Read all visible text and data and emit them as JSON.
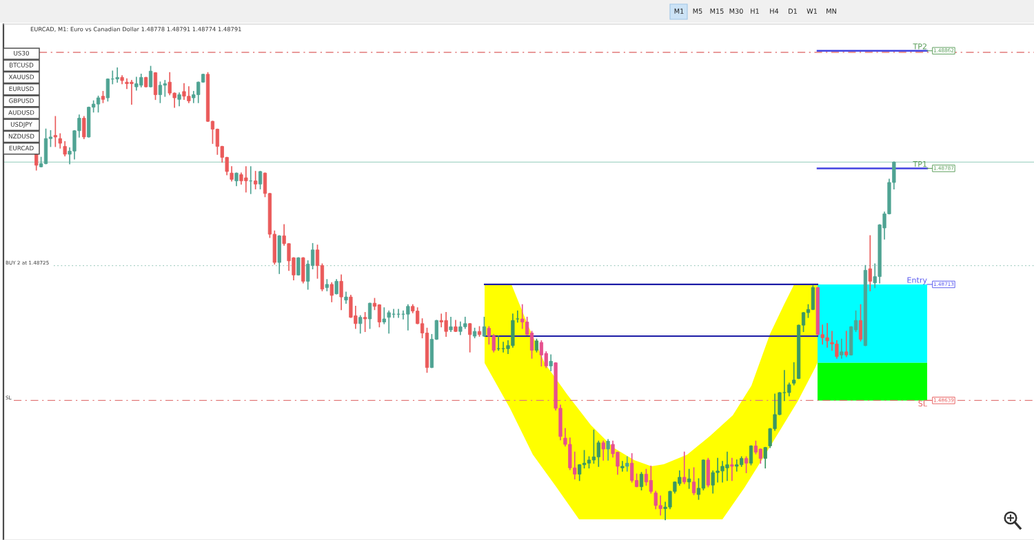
{
  "chart_data": {
    "type": "candlestick",
    "title": "EURCAD, M1: Euro vs Canadian Dollar 1.48778 1.48791 1.48774 1.48791",
    "categories": [
      null,
      null,
      null,
      null,
      null,
      null,
      null,
      null,
      null,
      null,
      null,
      null,
      null,
      null,
      null,
      null,
      null,
      null,
      null,
      null,
      null,
      null,
      null,
      null,
      null,
      null,
      null,
      null,
      null,
      null,
      null,
      null,
      null,
      null,
      null,
      null,
      null,
      null,
      null,
      null,
      null,
      null,
      null,
      null,
      null,
      null,
      null,
      null,
      null,
      null,
      null,
      null,
      null,
      null,
      null,
      null,
      null,
      null,
      null,
      null,
      null,
      null,
      null,
      null,
      null,
      null,
      null,
      null,
      null,
      null,
      null,
      null,
      null,
      null,
      null,
      null,
      null,
      null,
      null,
      null,
      null,
      null,
      null,
      null,
      null,
      null,
      null,
      null,
      null,
      null,
      null,
      null,
      null,
      null,
      null,
      null,
      null,
      null,
      null,
      null,
      null,
      null,
      null,
      null,
      null,
      null,
      null,
      null,
      null,
      null,
      null,
      null,
      null,
      null,
      null,
      null,
      null,
      null,
      null,
      null,
      null,
      null,
      null,
      null,
      null,
      null,
      null,
      null,
      null,
      null,
      null,
      null,
      null,
      null,
      null,
      null,
      null,
      null,
      null,
      null,
      null,
      null,
      null,
      null,
      null,
      null,
      null,
      null,
      null,
      null,
      null,
      null,
      null,
      null,
      null,
      null,
      null,
      null,
      null,
      null,
      null,
      null,
      null,
      null,
      null,
      null,
      null,
      null,
      null,
      null,
      null,
      null,
      null,
      null,
      null,
      null,
      null,
      null,
      null,
      null,
      null
    ],
    "ohlc": [
      [
        1.48796,
        1.48796,
        1.48786,
        1.48789
      ],
      [
        1.48788,
        1.48794,
        1.48788,
        1.4879
      ],
      [
        1.4879,
        1.48812,
        1.4879,
        1.48806
      ],
      [
        1.48806,
        1.48811,
        1.48801,
        1.48807
      ],
      [
        1.48808,
        1.4882,
        1.48801,
        1.48807
      ],
      [
        1.48806,
        1.48809,
        1.488,
        1.48803
      ],
      [
        1.48801,
        1.48804,
        1.48795,
        1.48796
      ],
      [
        1.48796,
        1.488,
        1.4879,
        1.48798
      ],
      [
        1.48798,
        1.48811,
        1.48793,
        1.48811
      ],
      [
        1.48811,
        1.48821,
        1.48807,
        1.48819
      ],
      [
        1.48819,
        1.4882,
        1.48806,
        1.48807
      ],
      [
        1.48807,
        1.48826,
        1.48807,
        1.48826
      ],
      [
        1.48826,
        1.4883,
        1.48823,
        1.48828
      ],
      [
        1.48828,
        1.48833,
        1.48823,
        1.48832
      ],
      [
        1.48833,
        1.48836,
        1.48829,
        1.48831
      ],
      [
        1.48832,
        1.48844,
        1.4883,
        1.48844
      ],
      [
        1.48844,
        1.48849,
        1.48841,
        1.48844
      ],
      [
        1.48844,
        1.48851,
        1.48842,
        1.48845
      ],
      [
        1.48845,
        1.48846,
        1.48841,
        1.48843
      ],
      [
        1.48842,
        1.48844,
        1.48838,
        1.48841
      ],
      [
        1.48842,
        1.48843,
        1.48828,
        1.48841
      ],
      [
        1.48839,
        1.48845,
        1.48837,
        1.48841
      ],
      [
        1.4884,
        1.48847,
        1.48839,
        1.48845
      ],
      [
        1.48845,
        1.48845,
        1.48839,
        1.48839
      ],
      [
        1.48839,
        1.48852,
        1.48839,
        1.48849
      ],
      [
        1.48848,
        1.48848,
        1.48831,
        1.48834
      ],
      [
        1.48834,
        1.48842,
        1.48829,
        1.4884
      ],
      [
        1.4884,
        1.48843,
        1.48833,
        1.48841
      ],
      [
        1.48842,
        1.48848,
        1.48834,
        1.48835
      ],
      [
        1.48835,
        1.48835,
        1.48826,
        1.48832
      ],
      [
        1.48831,
        1.48835,
        1.48827,
        1.48834
      ],
      [
        1.48836,
        1.48841,
        1.48831,
        1.48833
      ],
      [
        1.48833,
        1.48839,
        1.48829,
        1.4883
      ],
      [
        1.48832,
        1.48836,
        1.48829,
        1.48834
      ],
      [
        1.48834,
        1.48842,
        1.48829,
        1.48842
      ],
      [
        1.48842,
        1.48847,
        1.48842,
        1.48847
      ],
      [
        1.48847,
        1.48848,
        1.48817,
        1.48817
      ],
      [
        1.48817,
        1.48817,
        1.48803,
        1.48812
      ],
      [
        1.48812,
        1.48812,
        1.48796,
        1.48801
      ],
      [
        1.48801,
        1.48801,
        1.48791,
        1.48794
      ],
      [
        1.48794,
        1.48794,
        1.48783,
        1.48785
      ],
      [
        1.48784,
        1.48788,
        1.48779,
        1.4878
      ],
      [
        1.48779,
        1.48784,
        1.48776,
        1.48784
      ],
      [
        1.48783,
        1.48784,
        1.48777,
        1.48779
      ],
      [
        1.48781,
        1.48788,
        1.48772,
        1.48779
      ],
      [
        1.48779,
        1.48788,
        1.48771,
        1.48779
      ],
      [
        1.48779,
        1.48785,
        1.48774,
        1.48777
      ],
      [
        1.48777,
        1.48785,
        1.48774,
        1.48785
      ],
      [
        1.48784,
        1.48784,
        1.48769,
        1.48771
      ],
      [
        1.48771,
        1.48771,
        1.48743,
        1.48745
      ],
      [
        1.48745,
        1.48747,
        1.48726,
        1.48727
      ],
      [
        1.48727,
        1.48744,
        1.4872,
        1.48744
      ],
      [
        1.48744,
        1.48751,
        1.48738,
        1.48739
      ],
      [
        1.48739,
        1.48739,
        1.48722,
        1.48728
      ],
      [
        1.4873,
        1.4873,
        1.48716,
        1.48719
      ],
      [
        1.48719,
        1.4873,
        1.48719,
        1.4873
      ],
      [
        1.4873,
        1.4873,
        1.48714,
        1.48715
      ],
      [
        1.48715,
        1.48728,
        1.4871,
        1.48726
      ],
      [
        1.48725,
        1.48739,
        1.48723,
        1.48735
      ],
      [
        1.48735,
        1.48738,
        1.48717,
        1.48725
      ],
      [
        1.48725,
        1.48726,
        1.48709,
        1.4871
      ],
      [
        1.48711,
        1.48716,
        1.48709,
        1.48713
      ],
      [
        1.48713,
        1.48714,
        1.48702,
        1.48706
      ],
      [
        1.48707,
        1.48716,
        1.48707,
        1.48715
      ],
      [
        1.48715,
        1.48719,
        1.48697,
        1.48705
      ],
      [
        1.48703,
        1.48708,
        1.48701,
        1.48705
      ],
      [
        1.48705,
        1.48706,
        1.48692,
        1.48692
      ],
      [
        1.48693,
        1.48699,
        1.48685,
        1.48688
      ],
      [
        1.48688,
        1.48693,
        1.48682,
        1.48692
      ],
      [
        1.48692,
        1.48695,
        1.48683,
        1.48691
      ],
      [
        1.48691,
        1.48701,
        1.48685,
        1.48701
      ],
      [
        1.48701,
        1.48704,
        1.48697,
        1.48699
      ],
      [
        1.487,
        1.487,
        1.48686,
        1.48689
      ],
      [
        1.48689,
        1.48698,
        1.48688,
        1.48691
      ],
      [
        1.48692,
        1.48696,
        1.48682,
        1.48695
      ],
      [
        1.48694,
        1.48697,
        1.48692,
        1.48694
      ],
      [
        1.48694,
        1.48697,
        1.48692,
        1.48694
      ],
      [
        1.48694,
        1.48696,
        1.48691,
        1.48694
      ],
      [
        1.48694,
        1.487,
        1.48684,
        1.48699
      ],
      [
        1.48699,
        1.487,
        1.48695,
        1.48696
      ],
      [
        1.48696,
        1.48698,
        1.48688,
        1.48688
      ],
      [
        1.48688,
        1.48691,
        1.48679,
        1.48682
      ],
      [
        1.48682,
        1.48685,
        1.48657,
        1.4866
      ],
      [
        1.4866,
        1.48681,
        1.4866,
        1.48678
      ],
      [
        1.48678,
        1.4869,
        1.48678,
        1.4869
      ],
      [
        1.4869,
        1.48694,
        1.48686,
        1.48689
      ],
      [
        1.4869,
        1.48695,
        1.4868,
        1.48683
      ],
      [
        1.48684,
        1.48692,
        1.48683,
        1.48686
      ],
      [
        1.48686,
        1.4869,
        1.48683,
        1.48683
      ],
      [
        1.48683,
        1.48689,
        1.48681,
        1.48686
      ],
      [
        1.48686,
        1.48692,
        1.48685,
        1.48688
      ],
      [
        1.48688,
        1.48688,
        1.4867,
        1.48681
      ],
      [
        1.4868,
        1.48685,
        1.48679,
        1.48683
      ],
      [
        1.48683,
        1.48686,
        1.4868,
        1.48681
      ],
      [
        1.4868,
        1.48692,
        1.4868,
        1.48686
      ],
      [
        1.48685,
        1.48686,
        1.48675,
        1.4868
      ],
      [
        1.4868,
        1.48681,
        1.4867,
        1.48671
      ],
      [
        1.48672,
        1.4868,
        1.48671,
        1.48672
      ],
      [
        1.48672,
        1.48676,
        1.4867,
        1.48672
      ],
      [
        1.48672,
        1.48677,
        1.48669,
        1.48674
      ],
      [
        1.48674,
        1.48694,
        1.48673,
        1.4869
      ],
      [
        1.48691,
        1.48696,
        1.48689,
        1.48691
      ],
      [
        1.48691,
        1.487,
        1.48685,
        1.48689
      ],
      [
        1.48689,
        1.48692,
        1.48681,
        1.48681
      ],
      [
        1.48682,
        1.48683,
        1.48666,
        1.48671
      ],
      [
        1.48671,
        1.48678,
        1.4867,
        1.48677
      ],
      [
        1.48676,
        1.48677,
        1.48661,
        1.48668
      ],
      [
        1.48669,
        1.4867,
        1.4866,
        1.48661
      ],
      [
        1.48661,
        1.48668,
        1.48658,
        1.48664
      ],
      [
        1.48663,
        1.48663,
        1.48633,
        1.48634
      ],
      [
        1.48634,
        1.48636,
        1.48614,
        1.48616
      ],
      [
        1.48615,
        1.48621,
        1.4861,
        1.48611
      ],
      [
        1.48611,
        1.48615,
        1.48595,
        1.48596
      ],
      [
        1.48596,
        1.48606,
        1.48589,
        1.48592
      ],
      [
        1.48592,
        1.48598,
        1.48588,
        1.48598
      ],
      [
        1.48598,
        1.48607,
        1.48596,
        1.48599
      ],
      [
        1.48599,
        1.48603,
        1.48596,
        1.48601
      ],
      [
        1.48601,
        1.4862,
        1.48599,
        1.48603
      ],
      [
        1.48603,
        1.48613,
        1.48597,
        1.48612
      ],
      [
        1.48612,
        1.48613,
        1.48601,
        1.48608
      ],
      [
        1.48608,
        1.48614,
        1.48601,
        1.48613
      ],
      [
        1.48611,
        1.48613,
        1.48603,
        1.48605
      ],
      [
        1.48606,
        1.48606,
        1.48592,
        1.48597
      ],
      [
        1.48596,
        1.486,
        1.48594,
        1.48597
      ],
      [
        1.48597,
        1.48603,
        1.48594,
        1.48599
      ],
      [
        1.48599,
        1.48605,
        1.48587,
        1.48588
      ],
      [
        1.48588,
        1.48592,
        1.48584,
        1.48584
      ],
      [
        1.48584,
        1.48593,
        1.48582,
        1.48592
      ],
      [
        1.48592,
        1.48595,
        1.48585,
        1.48587
      ],
      [
        1.48588,
        1.48597,
        1.4858,
        1.48581
      ],
      [
        1.4858,
        1.48581,
        1.4857,
        1.48572
      ],
      [
        1.48572,
        1.48578,
        1.48566,
        1.4857
      ],
      [
        1.4857,
        1.48574,
        1.48563,
        1.48571
      ],
      [
        1.48571,
        1.48581,
        1.4857,
        1.48581
      ],
      [
        1.48581,
        1.48587,
        1.4858,
        1.48587
      ],
      [
        1.48586,
        1.48594,
        1.48585,
        1.4859
      ],
      [
        1.4859,
        1.48606,
        1.48586,
        1.48587
      ],
      [
        1.48587,
        1.48595,
        1.48583,
        1.48589
      ],
      [
        1.48587,
        1.48596,
        1.48579,
        1.4858
      ],
      [
        1.48579,
        1.48589,
        1.48576,
        1.48583
      ],
      [
        1.48583,
        1.48601,
        1.48582,
        1.48601
      ],
      [
        1.48601,
        1.48602,
        1.48584,
        1.48585
      ],
      [
        1.48585,
        1.48594,
        1.4858,
        1.48593
      ],
      [
        1.48593,
        1.48602,
        1.48587,
        1.48594
      ],
      [
        1.48594,
        1.486,
        1.48587,
        1.48597
      ],
      [
        1.48596,
        1.48606,
        1.48588,
        1.48598
      ],
      [
        1.48598,
        1.48602,
        1.48588,
        1.48597
      ],
      [
        1.48597,
        1.48601,
        1.48594,
        1.48598
      ],
      [
        1.48598,
        1.48603,
        1.48597,
        1.48602
      ],
      [
        1.48602,
        1.48603,
        1.48593,
        1.48599
      ],
      [
        1.48599,
        1.4861,
        1.48598,
        1.4861
      ],
      [
        1.4861,
        1.48613,
        1.48605,
        1.48606
      ],
      [
        1.48608,
        1.48608,
        1.48599,
        1.48602
      ],
      [
        1.48602,
        1.48609,
        1.48596,
        1.48609
      ],
      [
        1.4861,
        1.48621,
        1.48609,
        1.48621
      ],
      [
        1.48621,
        1.48643,
        1.4862,
        1.4863
      ],
      [
        1.4863,
        1.48644,
        1.4863,
        1.48644
      ],
      [
        1.48644,
        1.48658,
        1.48639,
        1.48644
      ],
      [
        1.48644,
        1.4865,
        1.48642,
        1.48649
      ],
      [
        1.4865,
        1.48663,
        1.48649,
        1.48652
      ],
      [
        1.48653,
        1.48687,
        1.48653,
        1.48687
      ],
      [
        1.48687,
        1.48695,
        1.48683,
        1.48695
      ],
      [
        1.48695,
        1.487,
        1.48692,
        1.48697
      ],
      [
        1.48697,
        1.48712,
        1.48697,
        1.48711
      ],
      [
        1.48711,
        1.48711,
        1.48681,
        1.48681
      ],
      [
        1.48681,
        1.48687,
        1.48675,
        1.48679
      ],
      [
        1.48679,
        1.48688,
        1.48673,
        1.48677
      ],
      [
        1.48676,
        1.48683,
        1.48671,
        1.48675
      ],
      [
        1.48675,
        1.48677,
        1.48666,
        1.48667
      ],
      [
        1.48668,
        1.48678,
        1.48666,
        1.4867
      ],
      [
        1.4867,
        1.48683,
        1.48667,
        1.48668
      ],
      [
        1.48668,
        1.48686,
        1.48668,
        1.48686
      ],
      [
        1.48684,
        1.48696,
        1.48683,
        1.4869
      ],
      [
        1.4869,
        1.487,
        1.48677,
        1.48678
      ],
      [
        1.48674,
        1.48725,
        1.48674,
        1.48722
      ],
      [
        1.48723,
        1.48744,
        1.48709,
        1.48715
      ],
      [
        1.48714,
        1.48726,
        1.48711,
        1.48718
      ],
      [
        1.48718,
        1.48751,
        1.48714,
        1.48751
      ],
      [
        1.48749,
        1.48759,
        1.48742,
        1.48758
      ],
      [
        1.48758,
        1.4878,
        1.48758,
        1.48778
      ],
      [
        1.48778,
        1.48791,
        1.48774,
        1.48791
      ]
    ],
    "colors": [
      "#ea5a5a",
      "#4fa393",
      "#4fa393",
      "#4fa393",
      "#ea5a5a",
      "#ea5a5a",
      "#ea5a5a",
      "#4fa393",
      "#4fa393",
      "#4fa393",
      "#ea5a5a",
      "#4fa393",
      "#4fa393",
      "#4fa393",
      "#ea5a5a",
      "#4fa393",
      "#4fa393",
      "#4fa393",
      "#ea5a5a",
      "#ea5a5a",
      "#ea5a5a",
      "#4fa393",
      "#4fa393",
      "#ea5a5a",
      "#4fa393",
      "#ea5a5a",
      "#4fa393",
      "#4fa393",
      "#ea5a5a",
      "#ea5a5a",
      "#4fa393",
      "#ea5a5a",
      "#ea5a5a",
      "#4fa393",
      "#4fa393",
      "#4fa393",
      "#ea5a5a",
      "#ea5a5a",
      "#ea5a5a",
      "#ea5a5a",
      "#ea5a5a",
      "#ea5a5a",
      "#4fa393",
      "#ea5a5a",
      "#ea5a5a",
      "#4fa393",
      "#ea5a5a",
      "#4fa393",
      "#ea5a5a",
      "#ea5a5a",
      "#ea5a5a",
      "#4fa393",
      "#ea5a5a",
      "#ea5a5a",
      "#ea5a5a",
      "#4fa393",
      "#ea5a5a",
      "#4fa393",
      "#4fa393",
      "#ea5a5a",
      "#ea5a5a",
      "#4fa393",
      "#ea5a5a",
      "#4fa393",
      "#ea5a5a",
      "#4fa393",
      "#ea5a5a",
      "#ea5a5a",
      "#4fa393",
      "#ea5a5a",
      "#4fa393",
      "#ea5a5a",
      "#ea5a5a",
      "#4fa393",
      "#4fa393",
      "#4fa393",
      "#4fa393",
      "#4fa393",
      "#4fa393",
      "#ea5a5a",
      "#ea5a5a",
      "#ea5a5a",
      "#ea5a5a",
      "#4fa393",
      "#4fa393",
      "#ea5a5a",
      "#ea5a5a",
      "#4fa393",
      "#ea5a5a",
      "#4fa393",
      "#4fa393",
      "#ea5a5a",
      "#4fa393",
      "#ea5a5a",
      "#4fa393",
      "#e6508e",
      "#e6508e",
      "#3b9863",
      "#3b9863",
      "#3b9863",
      "#3b9863",
      "#3b9863",
      "#e6508e",
      "#e6508e",
      "#e6508e",
      "#3b9863",
      "#e6508e",
      "#e6508e",
      "#4fa393",
      "#e6508e",
      "#e6508e",
      "#e6508e",
      "#e6508e",
      "#e6508e",
      "#3b9863",
      "#3b9863",
      "#3b9863",
      "#3b9863",
      "#3b9863",
      "#e6508e",
      "#4fa393",
      "#e6508e",
      "#e6508e",
      "#3b9863",
      "#4fa393",
      "#e6508e",
      "#e6508e",
      "#3b9863",
      "#e6508e",
      "#e6508e",
      "#e6508e",
      "#e6508e",
      "#3b9863",
      "#3b9863",
      "#3b9863",
      "#3b9863",
      "#e6508e",
      "#3b9863",
      "#e6508e",
      "#3b9863",
      "#3b9863",
      "#e6508e",
      "#3b9863",
      "#3b9863",
      "#3b9863",
      "#3b9863",
      "#e6508e",
      "#3b9863",
      "#3b9863",
      "#e6508e",
      "#3b9863",
      "#e6508e",
      "#e6508e",
      "#3b9863",
      "#3b9863",
      "#3b9863",
      "#3b9863",
      "#3b9863",
      "#3b9863",
      "#3b9863",
      "#3b9863",
      "#3b9863",
      "#3b9863",
      "#3b9863",
      "#e6508e",
      "#ea5a5a",
      "#ea5a5a",
      "#ea5a5a",
      "#ea5a5a",
      "#4fa393",
      "#ea5a5a",
      "#4fa393",
      "#4fa393",
      "#ea5a5a",
      "#4fa393",
      "#ea5a5a",
      "#4fa393",
      "#4fa393",
      "#4fa393",
      "#4fa393",
      "#4fa393"
    ],
    "ylim": [
      1.4855,
      1.48879
    ],
    "tick_labels": false,
    "ref_lines": [
      {
        "axis": "y",
        "value": 1.48861,
        "color": "#e27a7a",
        "line_style": "dashdot"
      },
      {
        "axis": "y",
        "value": 1.48791,
        "color": "#a6d5c7",
        "line_style": "solid"
      },
      {
        "axis": "y",
        "value": 1.48725,
        "label": "BUY 2 at 1.48725",
        "color": "#9ccabd",
        "line_style": "dotted"
      },
      {
        "axis": "y",
        "value": 1.48639,
        "label": "SL",
        "color": "#e27a7a",
        "line_style": "dashdot"
      },
      {
        "axis": "y",
        "value": 1.48713,
        "color": "#1c1ca6",
        "line_style": "solid"
      },
      {
        "axis": "y",
        "value": 1.4868,
        "color": "#1c1ca6",
        "line_style": "solid"
      },
      {
        "axis": "y",
        "value": 1.48862,
        "label": "TP2",
        "color": "#4242e0",
        "line_style": "solid"
      },
      {
        "axis": "y",
        "value": 1.48787,
        "label": "TP1",
        "color": "#4242e0",
        "line_style": "solid"
      }
    ],
    "bands": [
      {
        "axis": "y",
        "from": 1.48663,
        "to": 1.48713,
        "label": "Entry",
        "color": "#00ffff"
      },
      {
        "axis": "y",
        "from": 1.48639,
        "to": 1.48663,
        "label": "SL",
        "color": "#00ff00"
      }
    ],
    "annotations": [
      "M1",
      "M5",
      "M15",
      "M30",
      "H1",
      "H4",
      "D1",
      "W1",
      "MN",
      "US30",
      "BTCUSD",
      "XAUUSD",
      "EURUSD",
      "GBPUSD",
      "AUDUSD",
      "USDJPY",
      "NZDUSD",
      "EURCAD",
      "1.48862",
      "1.48787",
      "1.48713",
      "1.48639"
    ]
  }
}
